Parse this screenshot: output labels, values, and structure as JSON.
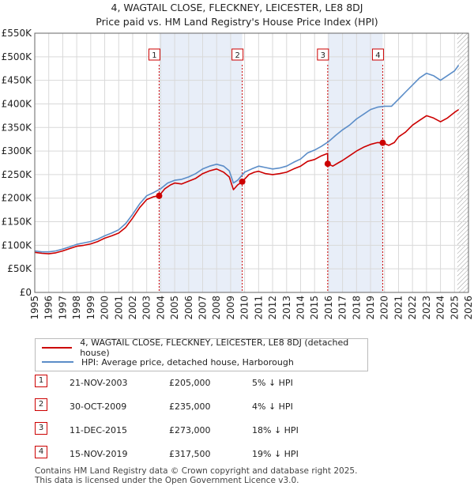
{
  "header": {
    "line1": "4, WAGTAIL CLOSE, FLECKNEY, LEICESTER, LE8 8DJ",
    "line2": "Price paid vs. HM Land Registry's House Price Index (HPI)"
  },
  "colors": {
    "price_paid": "#cc0000",
    "hpi": "#5b8dc8",
    "shade": "#e8eef8",
    "grid": "#d9d9d9"
  },
  "chart_data": {
    "type": "line",
    "title": "4, WAGTAIL CLOSE, FLECKNEY, LEICESTER, LE8 8DJ",
    "subtitle": "Price paid vs. HM Land Registry's House Price Index (HPI)",
    "xlim": [
      1995,
      2026
    ],
    "ylim": [
      0,
      550000
    ],
    "y_ticks": [
      0,
      50000,
      100000,
      150000,
      200000,
      250000,
      300000,
      350000,
      400000,
      450000,
      500000,
      550000
    ],
    "y_tick_labels": [
      "£0",
      "£50K",
      "£100K",
      "£150K",
      "£200K",
      "£250K",
      "£300K",
      "£350K",
      "£400K",
      "£450K",
      "£500K",
      "£550K"
    ],
    "x_ticks": [
      1995,
      1996,
      1997,
      1998,
      1999,
      2000,
      2001,
      2002,
      2003,
      2004,
      2005,
      2006,
      2007,
      2008,
      2009,
      2010,
      2011,
      2012,
      2013,
      2014,
      2015,
      2016,
      2017,
      2018,
      2019,
      2020,
      2021,
      2022,
      2023,
      2024,
      2025,
      2026
    ],
    "grid": true,
    "shaded_spans": [
      [
        2003.89,
        2009.83
      ],
      [
        2015.94,
        2019.87
      ]
    ],
    "hatched_span_start": 2025.2,
    "series": [
      {
        "name": "4, WAGTAIL CLOSE, FLECKNEY, LEICESTER, LE8 8DJ (detached house)",
        "color": "#cc0000",
        "x": [
          1995,
          1995.5,
          1996,
          1996.5,
          1997,
          1997.5,
          1998,
          1998.5,
          1999,
          1999.5,
          2000,
          2000.5,
          2001,
          2001.5,
          2002,
          2002.5,
          2003,
          2003.5,
          2003.89,
          2004.3,
          2004.7,
          2005,
          2005.5,
          2006,
          2006.5,
          2007,
          2007.5,
          2008,
          2008.5,
          2008.9,
          2009.2,
          2009.5,
          2009.83,
          2010.3,
          2010.7,
          2011,
          2011.5,
          2012,
          2012.5,
          2013,
          2013.5,
          2014,
          2014.5,
          2015,
          2015.5,
          2015.93,
          2015.94,
          2016.3,
          2016.7,
          2017,
          2017.5,
          2018,
          2018.5,
          2019,
          2019.5,
          2019.87,
          2020.3,
          2020.7,
          2021,
          2021.5,
          2022,
          2022.5,
          2023,
          2023.5,
          2024,
          2024.5,
          2025,
          2025.3
        ],
        "y": [
          85000,
          83000,
          82000,
          84000,
          88000,
          93000,
          98000,
          100000,
          103000,
          108000,
          115000,
          120000,
          126000,
          138000,
          158000,
          180000,
          197000,
          203000,
          205000,
          220000,
          228000,
          232000,
          230000,
          236000,
          242000,
          252000,
          258000,
          262000,
          255000,
          245000,
          218000,
          228000,
          235000,
          250000,
          255000,
          257000,
          252000,
          250000,
          252000,
          255000,
          262000,
          268000,
          278000,
          282000,
          290000,
          295000,
          273000,
          268000,
          275000,
          280000,
          290000,
          300000,
          308000,
          314000,
          318000,
          317500,
          312000,
          318000,
          330000,
          340000,
          355000,
          365000,
          375000,
          370000,
          362000,
          370000,
          382000,
          388000
        ]
      },
      {
        "name": "HPI: Average price, detached house, Harborough",
        "color": "#5b8dc8",
        "x": [
          1995,
          1995.5,
          1996,
          1996.5,
          1997,
          1997.5,
          1998,
          1998.5,
          1999,
          1999.5,
          2000,
          2000.5,
          2001,
          2001.5,
          2002,
          2002.5,
          2003,
          2003.5,
          2004,
          2004.5,
          2005,
          2005.5,
          2006,
          2006.5,
          2007,
          2007.5,
          2008,
          2008.5,
          2008.9,
          2009.2,
          2009.5,
          2010,
          2010.5,
          2011,
          2011.5,
          2012,
          2012.5,
          2013,
          2013.5,
          2014,
          2014.5,
          2015,
          2015.5,
          2016,
          2016.5,
          2017,
          2017.5,
          2018,
          2018.5,
          2019,
          2019.5,
          2020,
          2020.5,
          2021,
          2021.5,
          2022,
          2022.5,
          2023,
          2023.5,
          2024,
          2024.5,
          2025,
          2025.3
        ],
        "y": [
          88000,
          86000,
          86000,
          88000,
          92000,
          97000,
          102000,
          105000,
          108000,
          113000,
          120000,
          126000,
          133000,
          146000,
          166000,
          188000,
          205000,
          212000,
          220000,
          232000,
          238000,
          240000,
          245000,
          252000,
          262000,
          268000,
          272000,
          268000,
          258000,
          232000,
          238000,
          255000,
          262000,
          268000,
          265000,
          262000,
          264000,
          268000,
          276000,
          283000,
          296000,
          302000,
          310000,
          320000,
          333000,
          345000,
          355000,
          368000,
          378000,
          388000,
          393000,
          395000,
          395000,
          410000,
          425000,
          440000,
          455000,
          465000,
          460000,
          450000,
          460000,
          470000,
          482000
        ]
      }
    ],
    "transactions": [
      {
        "label": "1",
        "x": 2003.89,
        "y": 205000
      },
      {
        "label": "2",
        "x": 2009.83,
        "y": 235000
      },
      {
        "label": "3",
        "x": 2015.94,
        "y": 273000
      },
      {
        "label": "4",
        "x": 2019.87,
        "y": 317500
      }
    ]
  },
  "legend": {
    "series1": "4, WAGTAIL CLOSE, FLECKNEY, LEICESTER, LE8 8DJ (detached house)",
    "series2": "HPI: Average price, detached house, Harborough"
  },
  "transactions_table": [
    {
      "num": "1",
      "date": "21-NOV-2003",
      "price": "£205,000",
      "hpi": "5% ↓ HPI"
    },
    {
      "num": "2",
      "date": "30-OCT-2009",
      "price": "£235,000",
      "hpi": "4% ↓ HPI"
    },
    {
      "num": "3",
      "date": "11-DEC-2015",
      "price": "£273,000",
      "hpi": "18% ↓ HPI"
    },
    {
      "num": "4",
      "date": "15-NOV-2019",
      "price": "£317,500",
      "hpi": "19% ↓ HPI"
    }
  ],
  "footer": {
    "line1": "Contains HM Land Registry data © Crown copyright and database right 2025.",
    "line2": "This data is licensed under the Open Government Licence v3.0."
  }
}
